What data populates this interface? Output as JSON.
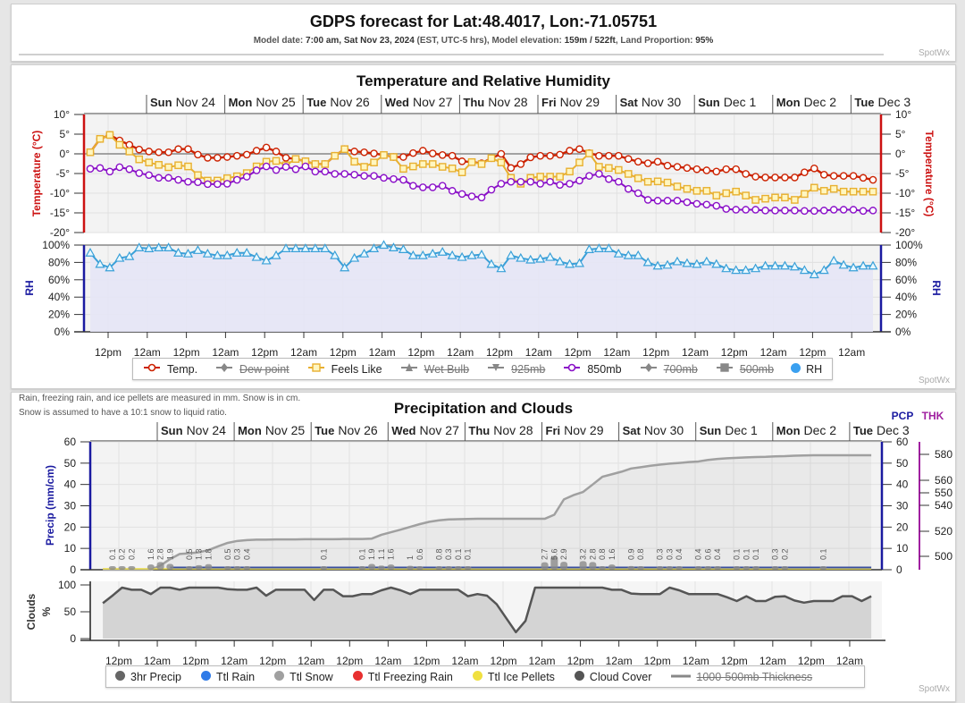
{
  "header": {
    "title": "GDPS forecast for Lat:48.4017, Lon:-71.05751",
    "subtitle": [
      {
        "t": "Model date: ",
        "b": false
      },
      {
        "t": "7:00 am, Sat Nov 23, 2024",
        "b": true
      },
      {
        "t": " (EST, UTC-5 hrs), Model elevation: ",
        "b": false
      },
      {
        "t": "159m / 522ft",
        "b": true
      },
      {
        "t": ", Land Proportion: ",
        "b": false
      },
      {
        "t": "95%",
        "b": true
      }
    ],
    "watermark": "SpotWx"
  },
  "chart_data": [
    {
      "type": "line",
      "title": "Temperature and Relative Humidity",
      "watermark": "SpotWx",
      "days": [
        [
          "Sun",
          "Nov 24"
        ],
        [
          "Mon",
          "Nov 25"
        ],
        [
          "Tue",
          "Nov 26"
        ],
        [
          "Wed",
          "Nov 27"
        ],
        [
          "Thu",
          "Nov 28"
        ],
        [
          "Fri",
          "Nov 29"
        ],
        [
          "Sat",
          "Nov 30"
        ],
        [
          "Sun",
          "Dec 1"
        ],
        [
          "Mon",
          "Dec 2"
        ],
        [
          "Tue",
          "Dec 3"
        ]
      ],
      "hour_labels": [
        "12pm",
        "12am",
        "12pm",
        "12am",
        "12pm",
        "12am",
        "12pm",
        "12am",
        "12pm",
        "12am",
        "12pm",
        "12am",
        "12pm",
        "12am",
        "12pm",
        "12am",
        "12pm",
        "12am",
        "12pm",
        "12am"
      ],
      "time_step": "3 hr",
      "temp_axis": {
        "label": "Temperature (°C)",
        "ticks": [
          "10°",
          "5°",
          "0°",
          "-5°",
          "-10°",
          "-15°",
          "-20°"
        ],
        "ylim": [
          -20,
          10
        ],
        "color": "#cc1111"
      },
      "rh_axis": {
        "label": "RH",
        "ticks": [
          "100%",
          "80%",
          "60%",
          "40%",
          "20%",
          "0%"
        ],
        "ylim": [
          0,
          100
        ],
        "color": "#1a1aa0"
      },
      "grid": true,
      "series": [
        {
          "name": "Temp.",
          "color": "#cc2200",
          "marker": "circle",
          "values": [
            0.4,
            3.8,
            4.8,
            3.4,
            2.3,
            1.1,
            0.6,
            0.4,
            0.4,
            1.2,
            1.2,
            -0.2,
            -1,
            -1,
            -0.8,
            -0.5,
            -0.2,
            0.8,
            1.6,
            0.6,
            -1,
            -1.3,
            -1.9,
            -2.6,
            -2.6,
            -0.5,
            1.2,
            0.6,
            0.4,
            0.1,
            -0.3,
            -0.8,
            -0.8,
            0.2,
            0.8,
            0.1,
            -0.3,
            -0.5,
            -1.9,
            -2.1,
            -2.4,
            -1.1,
            0,
            -3.6,
            -2.6,
            -0.9,
            -0.5,
            -0.5,
            -0.2,
            0.8,
            1.2,
            0.2,
            -0.5,
            -0.5,
            -0.5,
            -1.3,
            -2.0,
            -2.4,
            -2.0,
            -3.0,
            -3.3,
            -3.6,
            -3.9,
            -4.2,
            -4.5,
            -3.9,
            -3.9,
            -5.1,
            -5.8,
            -6.0,
            -6.0,
            -6.0,
            -6.0,
            -4.7,
            -3.7,
            -5.3,
            -5.6,
            -5.6,
            -5.6,
            -6.1,
            -6.6
          ]
        },
        {
          "name": "Feels Like",
          "color": "#e8b030",
          "marker": "square",
          "values": [
            0.4,
            3.8,
            4.8,
            2.3,
            0.6,
            -1.4,
            -2.2,
            -2.8,
            -3.4,
            -2.9,
            -3.2,
            -5.4,
            -6.8,
            -6.8,
            -6.2,
            -5.7,
            -4.9,
            -3.2,
            -2.0,
            -1.8,
            -2.9,
            -1.3,
            -1.9,
            -2.6,
            -2.6,
            -0.5,
            1.2,
            -2.0,
            -3.3,
            -2.2,
            -0.3,
            -0.8,
            -3.8,
            -3.2,
            -2.6,
            -2.6,
            -3.3,
            -3.7,
            -4.7,
            -2.1,
            -2.6,
            -1.1,
            -2.2,
            -6.1,
            -7.6,
            -6.1,
            -5.8,
            -5.8,
            -5.8,
            -4.5,
            -2.2,
            0.1,
            -3.3,
            -3.6,
            -4.1,
            -5.1,
            -6.2,
            -7.1,
            -7.0,
            -7.3,
            -8.3,
            -8.9,
            -9.4,
            -9.4,
            -10.6,
            -10.0,
            -9.6,
            -10.6,
            -11.7,
            -11.4,
            -11.1,
            -11.1,
            -11.7,
            -10.2,
            -8.6,
            -9.4,
            -8.9,
            -9.6,
            -9.6,
            -9.6,
            -9.6
          ]
        },
        {
          "name": "850mb",
          "color": "#8a10c8",
          "marker": "circle",
          "values": [
            -3.8,
            -3.6,
            -4.5,
            -3.4,
            -3.9,
            -4.9,
            -5.4,
            -6.1,
            -6.1,
            -6.6,
            -7.1,
            -7.2,
            -7.7,
            -7.7,
            -7.6,
            -6.6,
            -5.8,
            -4.2,
            -3.2,
            -4.1,
            -3.3,
            -3.9,
            -3.2,
            -4.5,
            -4.5,
            -5.1,
            -5.1,
            -5.3,
            -5.6,
            -5.6,
            -6.1,
            -6.4,
            -6.6,
            -8.1,
            -8.5,
            -8.5,
            -8.1,
            -9.4,
            -10.2,
            -10.8,
            -11.1,
            -9.1,
            -7.6,
            -7.1,
            -7.1,
            -7.1,
            -7.6,
            -7.1,
            -7.9,
            -7.6,
            -6.8,
            -5.6,
            -5.1,
            -6.4,
            -7.1,
            -8.9,
            -10.0,
            -11.7,
            -11.9,
            -11.9,
            -11.9,
            -12.3,
            -12.7,
            -12.9,
            -13.2,
            -14.0,
            -14.2,
            -14.2,
            -14.2,
            -14.4,
            -14.4,
            -14.4,
            -14.4,
            -14.5,
            -14.5,
            -14.4,
            -14.2,
            -14.2,
            -14.2,
            -14.5,
            -14.4
          ]
        },
        {
          "name": "RH",
          "color": "#3aa0d8",
          "marker": "triangle",
          "axis": "rh",
          "values": [
            91,
            78,
            74,
            85,
            87,
            97,
            96,
            97,
            97,
            91,
            90,
            94,
            90,
            88,
            88,
            91,
            91,
            86,
            82,
            88,
            96,
            96,
            96,
            96,
            96,
            88,
            74,
            85,
            90,
            96,
            100,
            97,
            95,
            88,
            88,
            90,
            92,
            88,
            86,
            88,
            89,
            78,
            73,
            88,
            85,
            83,
            84,
            86,
            81,
            78,
            79,
            95,
            96,
            96,
            90,
            88,
            88,
            80,
            76,
            77,
            81,
            79,
            78,
            81,
            78,
            73,
            71,
            71,
            73,
            76,
            76,
            76,
            75,
            71,
            66,
            71,
            82,
            77,
            74,
            76,
            76
          ]
        }
      ],
      "legend": [
        {
          "name": "Temp.",
          "enabled": true,
          "icon": "circle-marker",
          "color": "#cc2200"
        },
        {
          "name": "Dew point",
          "enabled": false,
          "icon": "diamond-marker",
          "color": "#888888"
        },
        {
          "name": "Feels Like",
          "enabled": true,
          "icon": "square-marker",
          "color": "#e8b030"
        },
        {
          "name": "Wet Bulb",
          "enabled": false,
          "icon": "triangle-marker",
          "color": "#888888"
        },
        {
          "name": "925mb",
          "enabled": false,
          "icon": "triangle-down-marker",
          "color": "#888888"
        },
        {
          "name": "850mb",
          "enabled": true,
          "icon": "circle-marker",
          "color": "#8a10c8"
        },
        {
          "name": "700mb",
          "enabled": false,
          "icon": "diamond-marker",
          "color": "#888888"
        },
        {
          "name": "500mb",
          "enabled": false,
          "icon": "square-marker",
          "color": "#888888"
        },
        {
          "name": "RH",
          "enabled": true,
          "icon": "dot",
          "color": "#3aa0f0"
        }
      ]
    },
    {
      "type": "bar",
      "title": "Precipitation and Clouds",
      "watermark": "SpotWx",
      "notes": [
        "Rain, freezing rain, and ice pellets are measured in mm. Snow is in cm.",
        "Snow is assumed to have a 10:1 snow to liquid ratio."
      ],
      "days": [
        [
          "Sun",
          "Nov 24"
        ],
        [
          "Mon",
          "Nov 25"
        ],
        [
          "Tue",
          "Nov 26"
        ],
        [
          "Wed",
          "Nov 27"
        ],
        [
          "Thu",
          "Nov 28"
        ],
        [
          "Fri",
          "Nov 29"
        ],
        [
          "Sat",
          "Nov 30"
        ],
        [
          "Sun",
          "Dec 1"
        ],
        [
          "Mon",
          "Dec 2"
        ],
        [
          "Tue",
          "Dec 3"
        ]
      ],
      "hour_labels": [
        "12pm",
        "12am",
        "12pm",
        "12am",
        "12pm",
        "12am",
        "12pm",
        "12am",
        "12pm",
        "12am",
        "12pm",
        "12am",
        "12pm",
        "12am",
        "12pm",
        "12am",
        "12pm",
        "12am",
        "12pm",
        "12am"
      ],
      "precip_axis": {
        "label": "Precip (mm/cm)",
        "ticks": [
          "60",
          "50",
          "40",
          "30",
          "20",
          "10",
          "0"
        ],
        "ylim": [
          0,
          60
        ],
        "right_label": "PCP",
        "color": "#1a1aa0"
      },
      "thk_axis": {
        "label": "THK",
        "ticks": [
          "580",
          "560",
          "550",
          "540",
          "520",
          "500"
        ],
        "color": "#a020a0"
      },
      "cloud_axis": {
        "label": "Clouds",
        "unit": "%",
        "ticks": [
          "100",
          "50",
          "0"
        ],
        "ylim": [
          0,
          100
        ]
      },
      "grid": true,
      "precip_3hr": [
        0,
        0.1,
        0.2,
        0.2,
        0,
        1.6,
        2.8,
        1.9,
        0,
        0.5,
        1.3,
        1.8,
        0,
        0.5,
        0.3,
        0.4,
        0,
        0,
        0,
        0,
        0,
        0,
        0,
        0.1,
        0,
        0,
        0,
        0.1,
        1.9,
        1.1,
        1.6,
        0,
        1,
        0.6,
        0,
        0.8,
        0.3,
        0.1,
        0.1,
        0,
        0,
        0,
        0,
        0,
        0,
        0,
        2.7,
        5.6,
        2.9,
        0,
        3.2,
        2.8,
        0.8,
        1.6,
        0,
        0.9,
        0.8,
        0,
        0.3,
        0.3,
        0.4,
        0,
        0.4,
        0.6,
        0.4,
        0,
        0.1,
        0.1,
        0.1,
        0,
        0.3,
        0.2,
        0,
        0,
        0,
        0.1,
        0,
        0,
        0,
        0,
        0
      ],
      "ttl_snow": [
        0,
        0,
        0,
        0,
        0,
        0,
        2,
        5,
        7.4,
        7.7,
        8.2,
        9.2,
        11,
        12.6,
        13.5,
        13.9,
        14.1,
        14.1,
        14.2,
        14.2,
        14.2,
        14.3,
        14.3,
        14.3,
        14.3,
        14.4,
        14.4,
        14.4,
        14.6,
        16.4,
        17.6,
        18.8,
        20.1,
        21.4,
        22.5,
        23.2,
        23.6,
        23.7,
        23.8,
        23.9,
        23.9,
        23.9,
        23.9,
        23.9,
        23.9,
        23.9,
        23.9,
        25.8,
        33,
        35,
        36.5,
        40,
        43.6,
        44.8,
        46,
        47.5,
        48.1,
        48.8,
        49.3,
        49.8,
        50.1,
        50.5,
        50.8,
        51.5,
        52,
        52.3,
        52.5,
        52.7,
        52.9,
        53,
        53.2,
        53.3,
        53.5,
        53.6,
        53.7,
        53.7,
        53.7,
        53.7,
        53.7,
        53.7,
        53.7
      ],
      "ttl_rain": 0,
      "ttl_freezing_rain": 0,
      "ttl_ice_pellets": 0,
      "cloud_cover": [
        66,
        80,
        95,
        91,
        91,
        83,
        95,
        95,
        91,
        95,
        95,
        95,
        95,
        92,
        91,
        91,
        95,
        80,
        91,
        91,
        91,
        91,
        72,
        91,
        91,
        79,
        79,
        83,
        83,
        90,
        95,
        90,
        83,
        91,
        91,
        91,
        91,
        91,
        79,
        83,
        80,
        64,
        38,
        12,
        33,
        95,
        95,
        95,
        95,
        95,
        95,
        95,
        95,
        91,
        91,
        84,
        83,
        83,
        83,
        95,
        90,
        83,
        83,
        83,
        83,
        77,
        70,
        79,
        70,
        70,
        78,
        79,
        71,
        67,
        70,
        70,
        70,
        79,
        79,
        70,
        79
      ],
      "colors": {
        "precip": "#666666",
        "rain": "#2f7be8",
        "snow": "#a0a0a0",
        "freezing_rain": "#e83030",
        "ice_pellets": "#f0e040",
        "cloud": "#555555"
      },
      "legend": [
        {
          "name": "3hr Precip",
          "enabled": true,
          "icon": "dot",
          "color": "#666666"
        },
        {
          "name": "Ttl Rain",
          "enabled": true,
          "icon": "dot",
          "color": "#2f7be8"
        },
        {
          "name": "Ttl Snow",
          "enabled": true,
          "icon": "dot",
          "color": "#a0a0a0"
        },
        {
          "name": "Ttl Freezing Rain",
          "enabled": true,
          "icon": "dot",
          "color": "#e83030"
        },
        {
          "name": "Ttl Ice Pellets",
          "enabled": true,
          "icon": "dot",
          "color": "#f0e040"
        },
        {
          "name": "Cloud Cover",
          "enabled": true,
          "icon": "dot",
          "color": "#555555"
        },
        {
          "name": "1000-500mb Thickness",
          "enabled": false,
          "icon": "line",
          "color": "#888888"
        }
      ]
    }
  ]
}
